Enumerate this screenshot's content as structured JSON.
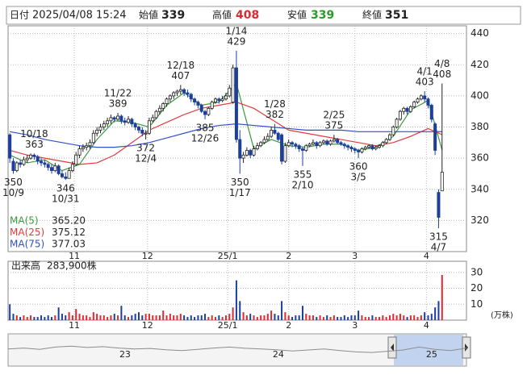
{
  "chart_data": {
    "type": "candlestick",
    "header": {
      "date_label": "日付",
      "date": "2025/04/08 15:24",
      "open_label": "始値",
      "open": 339,
      "high_label": "高値",
      "high": 408,
      "low_label": "安値",
      "low": 339,
      "close_label": "終値",
      "close": 351
    },
    "xlim": [
      -0.5,
      131
    ],
    "xticks": [
      {
        "value": 18.5,
        "label": "11"
      },
      {
        "value": 39.5,
        "label": "12"
      },
      {
        "value": 62.5,
        "label": "25/1"
      },
      {
        "value": 80,
        "label": "2"
      },
      {
        "value": 99,
        "label": "3"
      },
      {
        "value": 119.5,
        "label": "4"
      }
    ],
    "ylim": [
      300,
      445
    ],
    "yticks": [
      320,
      340,
      360,
      380,
      400,
      420,
      440
    ],
    "grid": true,
    "up_color": "#ffffff",
    "down_color": "#1c3f9f",
    "candles": [
      [
        375,
        376,
        357,
        360
      ],
      [
        358,
        360,
        350,
        352
      ],
      [
        352,
        358,
        351,
        357
      ],
      [
        357,
        359,
        354,
        356
      ],
      [
        356,
        361,
        355,
        359
      ],
      [
        359,
        362,
        357,
        360
      ],
      [
        360,
        363,
        359,
        362
      ],
      [
        362,
        363,
        359,
        361
      ],
      [
        361,
        362,
        356,
        358
      ],
      [
        358,
        360,
        355,
        357
      ],
      [
        357,
        359,
        354,
        356
      ],
      [
        356,
        357,
        352,
        354
      ],
      [
        354,
        356,
        350,
        352
      ],
      [
        352,
        357,
        351,
        355
      ],
      [
        355,
        356,
        349,
        350
      ],
      [
        350,
        352,
        347,
        348
      ],
      [
        348,
        351,
        346,
        347
      ],
      [
        347,
        354,
        347,
        352
      ],
      [
        352,
        358,
        351,
        356
      ],
      [
        356,
        364,
        355,
        362
      ],
      [
        362,
        368,
        360,
        366
      ],
      [
        366,
        369,
        364,
        367
      ],
      [
        367,
        370,
        365,
        368
      ],
      [
        368,
        372,
        366,
        370
      ],
      [
        370,
        378,
        369,
        376
      ],
      [
        376,
        380,
        374,
        378
      ],
      [
        378,
        382,
        376,
        380
      ],
      [
        380,
        384,
        378,
        382
      ],
      [
        382,
        386,
        380,
        384
      ],
      [
        384,
        388,
        382,
        386
      ],
      [
        386,
        387,
        383,
        385
      ],
      [
        385,
        389,
        384,
        387
      ],
      [
        387,
        388,
        382,
        384
      ],
      [
        384,
        386,
        381,
        383
      ],
      [
        383,
        387,
        382,
        385
      ],
      [
        385,
        386,
        380,
        382
      ],
      [
        382,
        383,
        378,
        380
      ],
      [
        380,
        381,
        376,
        378
      ],
      [
        378,
        380,
        374,
        376
      ],
      [
        376,
        378,
        372,
        376
      ],
      [
        376,
        386,
        375,
        384
      ],
      [
        384,
        388,
        383,
        386
      ],
      [
        386,
        391,
        385,
        390
      ],
      [
        390,
        394,
        388,
        392
      ],
      [
        392,
        396,
        390,
        395
      ],
      [
        395,
        399,
        393,
        398
      ],
      [
        398,
        401,
        396,
        400
      ],
      [
        400,
        403,
        398,
        402
      ],
      [
        402,
        404,
        400,
        403
      ],
      [
        403,
        407,
        401,
        404
      ],
      [
        404,
        405,
        400,
        402
      ],
      [
        402,
        404,
        399,
        401
      ],
      [
        401,
        402,
        396,
        398
      ],
      [
        398,
        399,
        394,
        396
      ],
      [
        396,
        397,
        392,
        394
      ],
      [
        394,
        395,
        389,
        390
      ],
      [
        390,
        391,
        385,
        388
      ],
      [
        388,
        393,
        387,
        392
      ],
      [
        392,
        397,
        391,
        396
      ],
      [
        396,
        399,
        395,
        398
      ],
      [
        398,
        399,
        395,
        397
      ],
      [
        397,
        400,
        396,
        398
      ],
      [
        398,
        402,
        397,
        400
      ],
      [
        400,
        407,
        399,
        405
      ],
      [
        396,
        420,
        395,
        418
      ],
      [
        418,
        429,
        370,
        372
      ],
      [
        372,
        378,
        350,
        360
      ],
      [
        360,
        364,
        357,
        362
      ],
      [
        362,
        367,
        361,
        365
      ],
      [
        365,
        366,
        360,
        362
      ],
      [
        362,
        368,
        361,
        366
      ],
      [
        366,
        370,
        365,
        368
      ],
      [
        368,
        371,
        367,
        370
      ],
      [
        370,
        374,
        369,
        372
      ],
      [
        372,
        376,
        371,
        374
      ],
      [
        374,
        380,
        373,
        378
      ],
      [
        378,
        382,
        375,
        376
      ],
      [
        376,
        377,
        371,
        372
      ],
      [
        375,
        376,
        356,
        358
      ],
      [
        358,
        370,
        357,
        368
      ],
      [
        368,
        372,
        367,
        370
      ],
      [
        370,
        371,
        367,
        369
      ],
      [
        369,
        370,
        366,
        368
      ],
      [
        368,
        369,
        364,
        366
      ],
      [
        366,
        367,
        355,
        365
      ],
      [
        365,
        369,
        364,
        368
      ],
      [
        368,
        370,
        367,
        369
      ],
      [
        369,
        372,
        368,
        370
      ],
      [
        370,
        371,
        366,
        368
      ],
      [
        368,
        371,
        367,
        370
      ],
      [
        370,
        372,
        369,
        371
      ],
      [
        371,
        372,
        368,
        369
      ],
      [
        369,
        372,
        368,
        371
      ],
      [
        371,
        375,
        370,
        372
      ],
      [
        372,
        373,
        369,
        370
      ],
      [
        370,
        371,
        368,
        369
      ],
      [
        369,
        370,
        366,
        368
      ],
      [
        368,
        369,
        365,
        367
      ],
      [
        367,
        368,
        364,
        366
      ],
      [
        366,
        367,
        363,
        365
      ],
      [
        365,
        366,
        360,
        364
      ],
      [
        364,
        367,
        363,
        366
      ],
      [
        366,
        368,
        365,
        367
      ],
      [
        367,
        369,
        366,
        368
      ],
      [
        368,
        369,
        365,
        366
      ],
      [
        366,
        368,
        365,
        367
      ],
      [
        367,
        369,
        366,
        368
      ],
      [
        368,
        371,
        367,
        370
      ],
      [
        370,
        373,
        369,
        372
      ],
      [
        372,
        376,
        371,
        375
      ],
      [
        375,
        381,
        374,
        380
      ],
      [
        380,
        386,
        379,
        385
      ],
      [
        385,
        391,
        384,
        390
      ],
      [
        390,
        393,
        388,
        392
      ],
      [
        392,
        393,
        388,
        390
      ],
      [
        390,
        394,
        389,
        393
      ],
      [
        393,
        397,
        392,
        396
      ],
      [
        396,
        399,
        395,
        398
      ],
      [
        398,
        401,
        397,
        400
      ],
      [
        400,
        403,
        396,
        398
      ],
      [
        398,
        399,
        392,
        394
      ],
      [
        394,
        395,
        383,
        385
      ],
      [
        382,
        383,
        362,
        365
      ],
      [
        338,
        340,
        315,
        322
      ],
      [
        339,
        408,
        339,
        351
      ]
    ],
    "ma_x": [
      0,
      5,
      10,
      15,
      20,
      25,
      30,
      35,
      40,
      45,
      50,
      55,
      60,
      65,
      70,
      75,
      80,
      85,
      90,
      95,
      100,
      105,
      110,
      115,
      120,
      124
    ],
    "moving_averages": [
      {
        "name": "MA(5)",
        "color": "#3c9a3c",
        "last": {
          "value": 365.2,
          "label": "365.20"
        },
        "values": [
          362,
          357,
          359,
          352,
          356,
          372,
          384,
          383,
          380,
          394,
          402,
          394,
          396,
          408,
          366,
          372,
          368,
          367,
          369,
          369,
          365,
          367,
          374,
          391,
          397,
          365.2
        ]
      },
      {
        "name": "MA(25)",
        "color": "#e03c3c",
        "last": 375.12,
        "values": [
          365,
          362,
          360,
          358,
          356,
          357,
          362,
          370,
          378,
          383,
          388,
          392,
          394,
          396,
          392,
          385,
          378,
          376,
          374,
          372,
          370,
          368,
          370,
          374,
          379,
          375.12
        ]
      },
      {
        "name": "MA(75)",
        "color": "#3050c8",
        "last": 377.03,
        "values": [
          377,
          375,
          372,
          370,
          368,
          367,
          367,
          368,
          370,
          373,
          376,
          379,
          381,
          382,
          381,
          380,
          379,
          378,
          378,
          378,
          377,
          377,
          377,
          377,
          377,
          377.03
        ]
      }
    ],
    "annotations": [
      {
        "date": "10/18",
        "value": 363,
        "at": 7,
        "side": "high"
      },
      {
        "date": "10/9",
        "value": 350,
        "at": 1,
        "side": "low"
      },
      {
        "date": "10/31",
        "value": 346,
        "at": 16,
        "side": "low"
      },
      {
        "date": "11/22",
        "value": 389,
        "at": 31,
        "side": "high"
      },
      {
        "date": "12/4",
        "value": 372,
        "at": 39,
        "side": "low"
      },
      {
        "date": "12/18",
        "value": 407,
        "at": 49,
        "side": "high"
      },
      {
        "date": "12/26",
        "value": 385,
        "at": 56,
        "side": "low"
      },
      {
        "date": "1/14",
        "value": 429,
        "at": 65,
        "side": "high"
      },
      {
        "date": "1/17",
        "value": 350,
        "at": 66,
        "side": "low"
      },
      {
        "date": "1/28",
        "value": 382,
        "at": 76,
        "side": "high"
      },
      {
        "date": "2/10",
        "value": 355,
        "at": 84,
        "side": "low"
      },
      {
        "date": "2/25",
        "value": 375,
        "at": 93,
        "side": "high"
      },
      {
        "date": "3/5",
        "value": 360,
        "at": 100,
        "side": "low"
      },
      {
        "date": "4/1",
        "value": 403,
        "at": 119,
        "side": "high"
      },
      {
        "date": "4/8",
        "value": 408,
        "at": 124,
        "side": "high"
      },
      {
        "date": "4/7",
        "value": 315,
        "at": 123,
        "side": "low"
      }
    ],
    "volume": {
      "title": "出来高",
      "latest": {
        "value": 28.39,
        "label": "283,900株"
      },
      "unit": "(万株)",
      "ylim": [
        0,
        36
      ],
      "yticks": [
        10,
        20,
        30
      ],
      "up_color": "#e0282e",
      "down_color": "#1c3f9f",
      "values": [
        10,
        4,
        3,
        2,
        3,
        2,
        3,
        2,
        2,
        3,
        2,
        3,
        2,
        3,
        8,
        4,
        3,
        5,
        3,
        7,
        4,
        3,
        3,
        2,
        5,
        4,
        3,
        3,
        2,
        3,
        4,
        3,
        9,
        3,
        2,
        3,
        4,
        5,
        3,
        4,
        4,
        3,
        3,
        3,
        6,
        3,
        4,
        3,
        3,
        4,
        3,
        2,
        3,
        2,
        3,
        3,
        4,
        2,
        3,
        2,
        3,
        2,
        3,
        4,
        8,
        25,
        12,
        5,
        3,
        4,
        3,
        2,
        3,
        3,
        4,
        6,
        4,
        3,
        12,
        5,
        3,
        2,
        3,
        3,
        9,
        4,
        3,
        3,
        2,
        3,
        2,
        3,
        2,
        3,
        2,
        2,
        3,
        2,
        3,
        3,
        6,
        3,
        2,
        2,
        3,
        2,
        2,
        3,
        2,
        3,
        4,
        3,
        4,
        3,
        2,
        3,
        3,
        2,
        3,
        5,
        3,
        4,
        8,
        12,
        28.39
      ]
    },
    "navigator": {
      "color": "#8c8c8c",
      "xlim": [
        0,
        29
      ],
      "ylim": [
        300,
        450
      ],
      "xticks": [
        {
          "value": 7.4,
          "label": "23"
        },
        {
          "value": 17.1,
          "label": "24"
        },
        {
          "value": 26.8,
          "label": "25"
        }
      ],
      "values": [
        380,
        385,
        378,
        390,
        395,
        388,
        392,
        385,
        380,
        383,
        376,
        372,
        378,
        385,
        390,
        384,
        380,
        376,
        370,
        375,
        380,
        372,
        365,
        362,
        368,
        375,
        390,
        378,
        372,
        385
      ]
    }
  }
}
